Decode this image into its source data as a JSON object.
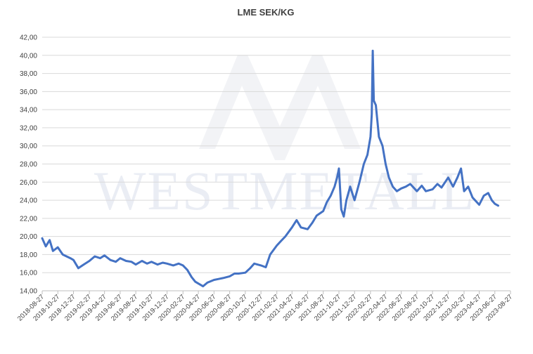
{
  "watermark": {
    "logo_icon": "westmetall-m-logo",
    "text": "WESTMETALL"
  },
  "chart_data": {
    "type": "line",
    "title": "LME SEK/KG",
    "xlabel": "",
    "ylabel": "",
    "ylim": [
      14,
      42
    ],
    "y_ticks": [
      "14,00",
      "16,00",
      "18,00",
      "20,00",
      "22,00",
      "24,00",
      "26,00",
      "28,00",
      "30,00",
      "32,00",
      "34,00",
      "36,00",
      "38,00",
      "40,00",
      "42,00"
    ],
    "x_range": [
      "2018-08-27",
      "2023-08-27"
    ],
    "x_ticks": [
      "2018-08-27",
      "2018-10-27",
      "2018-12-27",
      "2019-02-27",
      "2019-04-27",
      "2019-06-27",
      "2019-08-27",
      "2019-10-27",
      "2019-12-27",
      "2020-02-27",
      "2020-04-27",
      "2020-06-27",
      "2020-08-27",
      "2020-10-27",
      "2020-12-27",
      "2021-02-27",
      "2021-04-27",
      "2021-06-27",
      "2021-08-27",
      "2021-10-27",
      "2021-12-27",
      "2022-02-27",
      "2022-04-27",
      "2022-06-27",
      "2022-08-27",
      "2022-10-27",
      "2022-12-27",
      "2023-02-27",
      "2023-04-27",
      "2023-06-27",
      "2023-08-27"
    ],
    "grid": true,
    "legend": "none",
    "series_color": "#4472c4",
    "series": [
      {
        "x": [
          "2018-08-27",
          "2018-09-10",
          "2018-09-25",
          "2018-10-08",
          "2018-10-27",
          "2018-11-15",
          "2018-11-30",
          "2018-12-15",
          "2018-12-27",
          "2019-01-15",
          "2019-02-05",
          "2019-02-27",
          "2019-03-20",
          "2019-04-10",
          "2019-04-27",
          "2019-05-20",
          "2019-06-10",
          "2019-06-27",
          "2019-07-20",
          "2019-08-10",
          "2019-08-27",
          "2019-09-20",
          "2019-10-10",
          "2019-10-27",
          "2019-11-20",
          "2019-12-10",
          "2019-12-27",
          "2020-01-20",
          "2020-02-10",
          "2020-02-27",
          "2020-03-15",
          "2020-04-01",
          "2020-04-15",
          "2020-04-27",
          "2020-05-15",
          "2020-06-01",
          "2020-06-27",
          "2020-07-15",
          "2020-08-01",
          "2020-08-27",
          "2020-09-15",
          "2020-10-01",
          "2020-10-27",
          "2020-11-15",
          "2020-12-01",
          "2020-12-27",
          "2021-01-15",
          "2021-02-01",
          "2021-02-27",
          "2021-03-15",
          "2021-04-01",
          "2021-04-27",
          "2021-05-15",
          "2021-06-01",
          "2021-06-27",
          "2021-07-15",
          "2021-08-01",
          "2021-08-27",
          "2021-09-10",
          "2021-09-25",
          "2021-10-10",
          "2021-10-20",
          "2021-10-27",
          "2021-11-05",
          "2021-11-15",
          "2021-11-25",
          "2021-12-10",
          "2021-12-27",
          "2022-01-15",
          "2022-02-01",
          "2022-02-15",
          "2022-02-27",
          "2022-03-04",
          "2022-03-08",
          "2022-03-12",
          "2022-03-20",
          "2022-04-01",
          "2022-04-15",
          "2022-04-27",
          "2022-05-10",
          "2022-05-25",
          "2022-06-10",
          "2022-06-27",
          "2022-07-15",
          "2022-08-01",
          "2022-08-27",
          "2022-09-15",
          "2022-10-01",
          "2022-10-27",
          "2022-11-15",
          "2022-12-01",
          "2022-12-27",
          "2023-01-15",
          "2023-02-01",
          "2023-02-15",
          "2023-02-27",
          "2023-03-15",
          "2023-04-01",
          "2023-04-27",
          "2023-05-15",
          "2023-06-01",
          "2023-06-15",
          "2023-06-27",
          "2023-07-10"
        ],
        "y": [
          19.8,
          18.9,
          19.6,
          18.4,
          18.8,
          18.0,
          17.8,
          17.6,
          17.4,
          16.5,
          16.9,
          17.3,
          17.8,
          17.6,
          17.9,
          17.4,
          17.2,
          17.6,
          17.3,
          17.2,
          16.9,
          17.3,
          17.0,
          17.2,
          16.9,
          17.1,
          17.0,
          16.8,
          17.0,
          16.8,
          16.3,
          15.5,
          15.0,
          14.8,
          14.5,
          14.9,
          15.2,
          15.3,
          15.4,
          15.6,
          15.9,
          15.9,
          16.0,
          16.5,
          17.0,
          16.8,
          16.6,
          18.0,
          19.0,
          19.5,
          20.0,
          21.0,
          21.8,
          21.0,
          20.8,
          21.5,
          22.3,
          22.8,
          23.8,
          24.5,
          25.5,
          26.5,
          27.5,
          23.0,
          22.2,
          24.0,
          25.5,
          24.0,
          26.0,
          28.0,
          29.0,
          31.0,
          33.5,
          40.5,
          35.0,
          34.5,
          31.0,
          30.0,
          28.0,
          26.5,
          25.5,
          25.0,
          25.3,
          25.5,
          25.8,
          25.0,
          25.6,
          25.0,
          25.2,
          25.8,
          25.4,
          26.5,
          25.5,
          26.5,
          27.5,
          25.0,
          25.5,
          24.3,
          23.5,
          24.5,
          24.8,
          24.0,
          23.6,
          23.4
        ]
      }
    ]
  }
}
